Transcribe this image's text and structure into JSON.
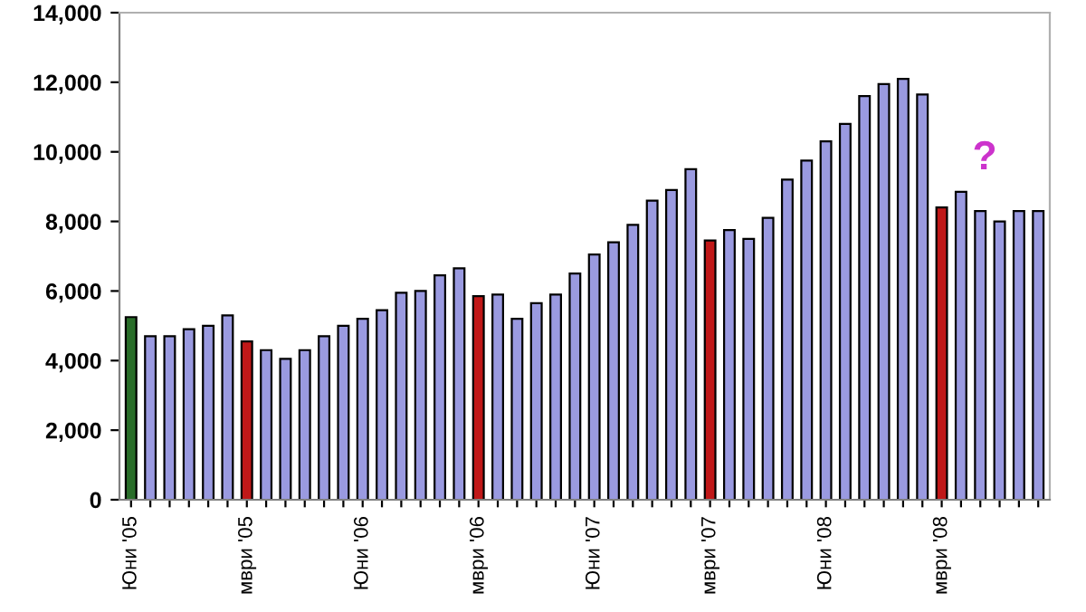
{
  "chart_data": {
    "type": "bar",
    "categories": [
      "Юни '05",
      null,
      null,
      null,
      null,
      null,
      "мври '05",
      null,
      null,
      null,
      null,
      null,
      "Юни '06",
      null,
      null,
      null,
      null,
      null,
      "мври '06",
      null,
      null,
      null,
      null,
      null,
      "Юни '07",
      null,
      null,
      null,
      null,
      null,
      "мври '07",
      null,
      null,
      null,
      null,
      null,
      "Юни '08",
      null,
      null,
      null,
      null,
      null,
      "мври '08",
      null,
      null,
      null,
      null,
      null
    ],
    "values": [
      5250,
      4700,
      4700,
      4900,
      5000,
      5300,
      4550,
      4300,
      4050,
      4300,
      4700,
      5000,
      5200,
      5450,
      5950,
      6000,
      6450,
      6650,
      5850,
      5900,
      5200,
      5650,
      5900,
      6500,
      7050,
      7400,
      7900,
      8600,
      8900,
      9500,
      7450,
      7750,
      7500,
      8100,
      9200,
      9750,
      10300,
      10800,
      11600,
      11950,
      12100,
      11650,
      8400,
      8850,
      8300,
      8000,
      8300,
      8300
    ],
    "colors": [
      "#2a6e2a",
      "#9a9ae0",
      "#9a9ae0",
      "#9a9ae0",
      "#9a9ae0",
      "#9a9ae0",
      "#c01818",
      "#9a9ae0",
      "#9a9ae0",
      "#9a9ae0",
      "#9a9ae0",
      "#9a9ae0",
      "#9a9ae0",
      "#9a9ae0",
      "#9a9ae0",
      "#9a9ae0",
      "#9a9ae0",
      "#9a9ae0",
      "#c01818",
      "#9a9ae0",
      "#9a9ae0",
      "#9a9ae0",
      "#9a9ae0",
      "#9a9ae0",
      "#9a9ae0",
      "#9a9ae0",
      "#9a9ae0",
      "#9a9ae0",
      "#9a9ae0",
      "#9a9ae0",
      "#c01818",
      "#9a9ae0",
      "#9a9ae0",
      "#9a9ae0",
      "#9a9ae0",
      "#9a9ae0",
      "#9a9ae0",
      "#9a9ae0",
      "#9a9ae0",
      "#9a9ae0",
      "#9a9ae0",
      "#9a9ae0",
      "#c01818",
      "#9a9ae0",
      "#9a9ae0",
      "#9a9ae0",
      "#9a9ae0",
      "#9a9ae0"
    ],
    "ylim": [
      0,
      14000
    ],
    "yticks": [
      {
        "value": 0,
        "label": "0"
      },
      {
        "value": 2000,
        "label": "2,000"
      },
      {
        "value": 4000,
        "label": "4,000"
      },
      {
        "value": 6000,
        "label": "6,000"
      },
      {
        "value": 8000,
        "label": "8,000"
      },
      {
        "value": 10000,
        "label": "10,000"
      },
      {
        "value": 12000,
        "label": "12,000"
      },
      {
        "value": 14000,
        "label": "14,000"
      }
    ],
    "annotations": [
      "?"
    ],
    "grid": false,
    "legend": false
  }
}
